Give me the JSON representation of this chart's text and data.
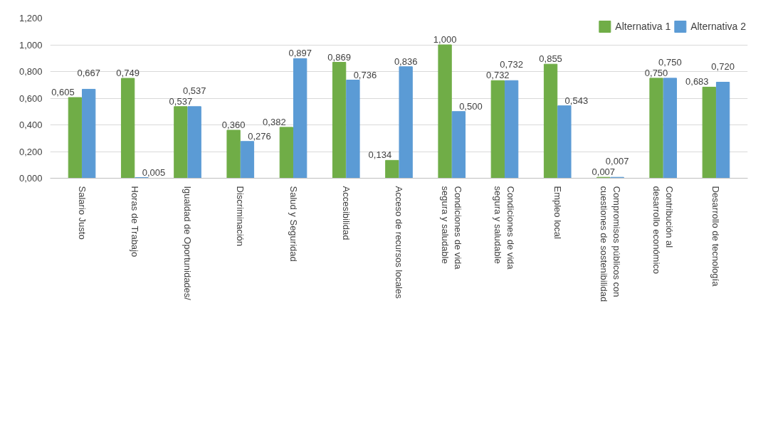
{
  "chart_data": {
    "type": "bar",
    "categories": [
      "Salario Justo",
      "Horas de Trabajo",
      "Igualdad de Oportunidades/",
      "Discriminación",
      "Salud y Seguridad",
      "Accesibilidad",
      "Acceso de recursos locales",
      "Condiciones de vida segura y saludable",
      "Condiciones de vida segura y saludable",
      "Empleo local",
      "Compromisos públicos con cuestiones de sostenibilidad",
      "Contribución al desarrollo económico",
      "Desarrollo de tecnología"
    ],
    "series": [
      {
        "name": "Alternativa 1",
        "color": "#70ad47",
        "values": [
          0.605,
          0.749,
          0.537,
          0.36,
          0.382,
          0.869,
          0.134,
          1.0,
          0.732,
          0.855,
          0.007,
          0.75,
          0.683
        ],
        "value_labels": [
          "0,605",
          "0,749",
          "0,537",
          "0,360",
          "0,382",
          "0,869",
          "0,134",
          "1,000",
          "0,732",
          "0,855",
          "0,007",
          "0,750",
          "0,683"
        ]
      },
      {
        "name": "Alternativa 2",
        "color": "#5b9bd5",
        "values": [
          0.667,
          0.005,
          0.537,
          0.276,
          0.897,
          0.736,
          0.836,
          0.5,
          0.732,
          0.543,
          0.007,
          0.75,
          0.72
        ],
        "value_labels": [
          "0,667",
          "0,005",
          "0,537",
          "0,276",
          "0,897",
          "0,736",
          "0,836",
          "0,500",
          "0,732",
          "0,543",
          "0,007",
          "0,750",
          "0,720"
        ]
      }
    ],
    "ylim": [
      0,
      1.2
    ],
    "yticks": [
      {
        "value": 0,
        "label": "0,000"
      },
      {
        "value": 0.2,
        "label": "0,200"
      },
      {
        "value": 0.4,
        "label": "0,400"
      },
      {
        "value": 0.6,
        "label": "0,600"
      },
      {
        "value": 0.8,
        "label": "0,800"
      },
      {
        "value": 1.0,
        "label": "1,000"
      },
      {
        "value": 1.2,
        "label": "1,200"
      }
    ],
    "grid": "y",
    "legend": "top right"
  }
}
